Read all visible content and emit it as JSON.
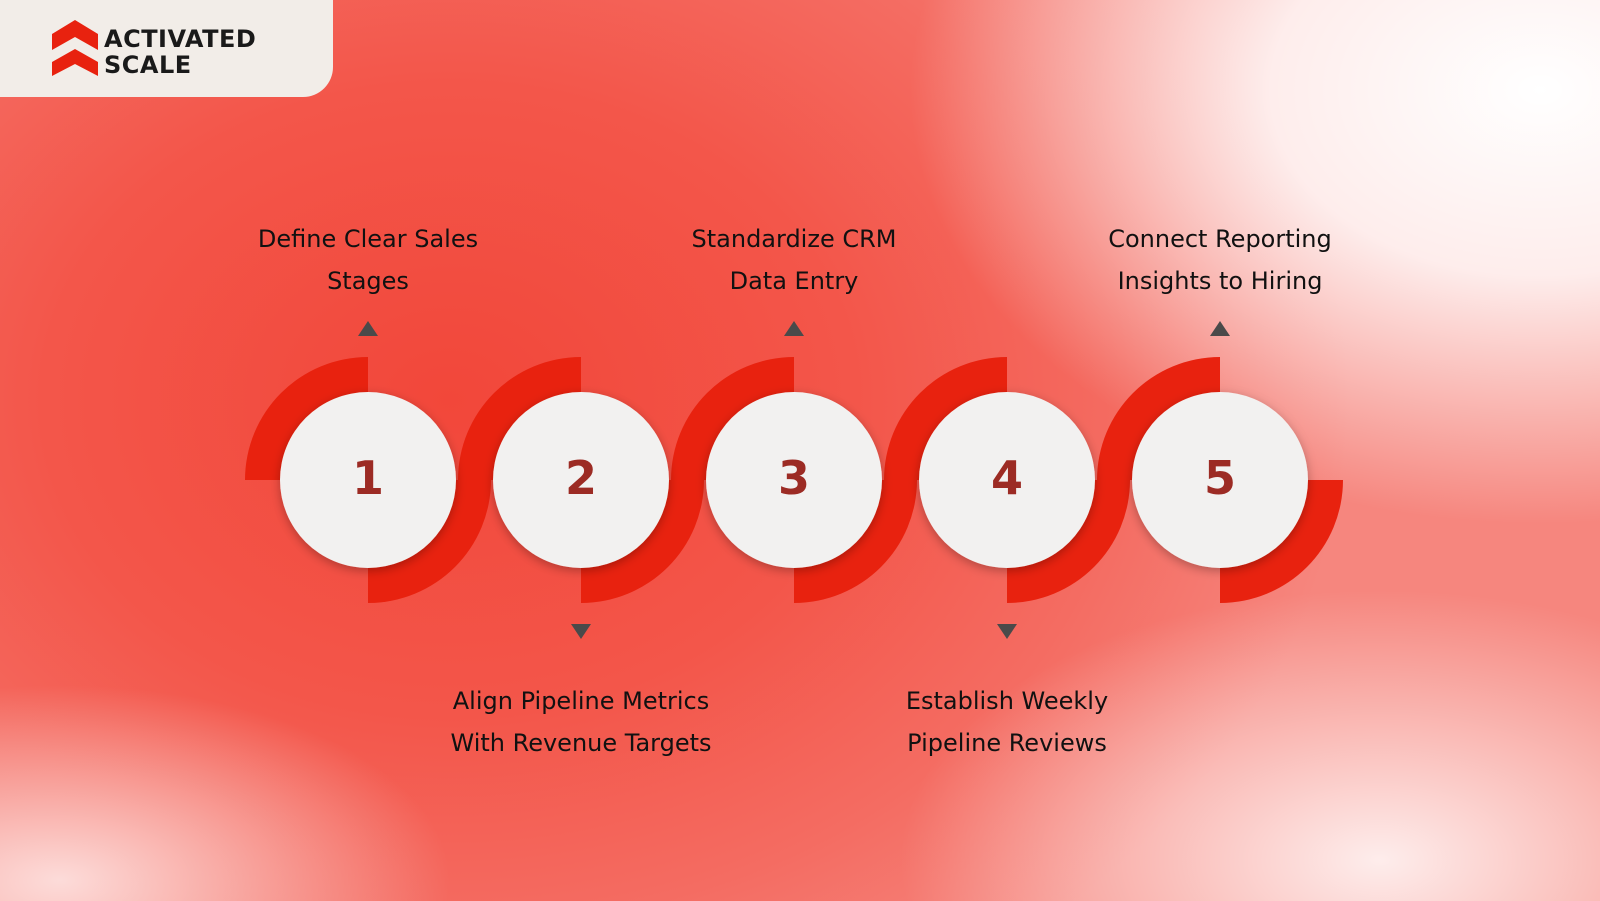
{
  "brand": {
    "name_line1": "ACTIVATED",
    "name_line2": "SCALE",
    "logo_icon": "chevron-stack-logo",
    "accent_color": "#e8220f"
  },
  "steps": [
    {
      "number": "1",
      "label_line1": "Define Clear Sales",
      "label_line2": "Stages",
      "position": "above"
    },
    {
      "number": "2",
      "label_line1": "Align Pipeline Metrics",
      "label_line2": "With Revenue Targets",
      "position": "below"
    },
    {
      "number": "3",
      "label_line1": "Standardize CRM",
      "label_line2": "Data Entry",
      "position": "above"
    },
    {
      "number": "4",
      "label_line1": "Establish Weekly",
      "label_line2": "Pipeline Reviews",
      "position": "below"
    },
    {
      "number": "5",
      "label_line1": "Connect Reporting",
      "label_line2": "Insights to Hiring",
      "position": "above"
    }
  ],
  "colors": {
    "arc": "#e8220f",
    "circle_fill": "#f2f1f0",
    "number_text": "#9c2b24",
    "arrow": "#4a4a4a"
  }
}
